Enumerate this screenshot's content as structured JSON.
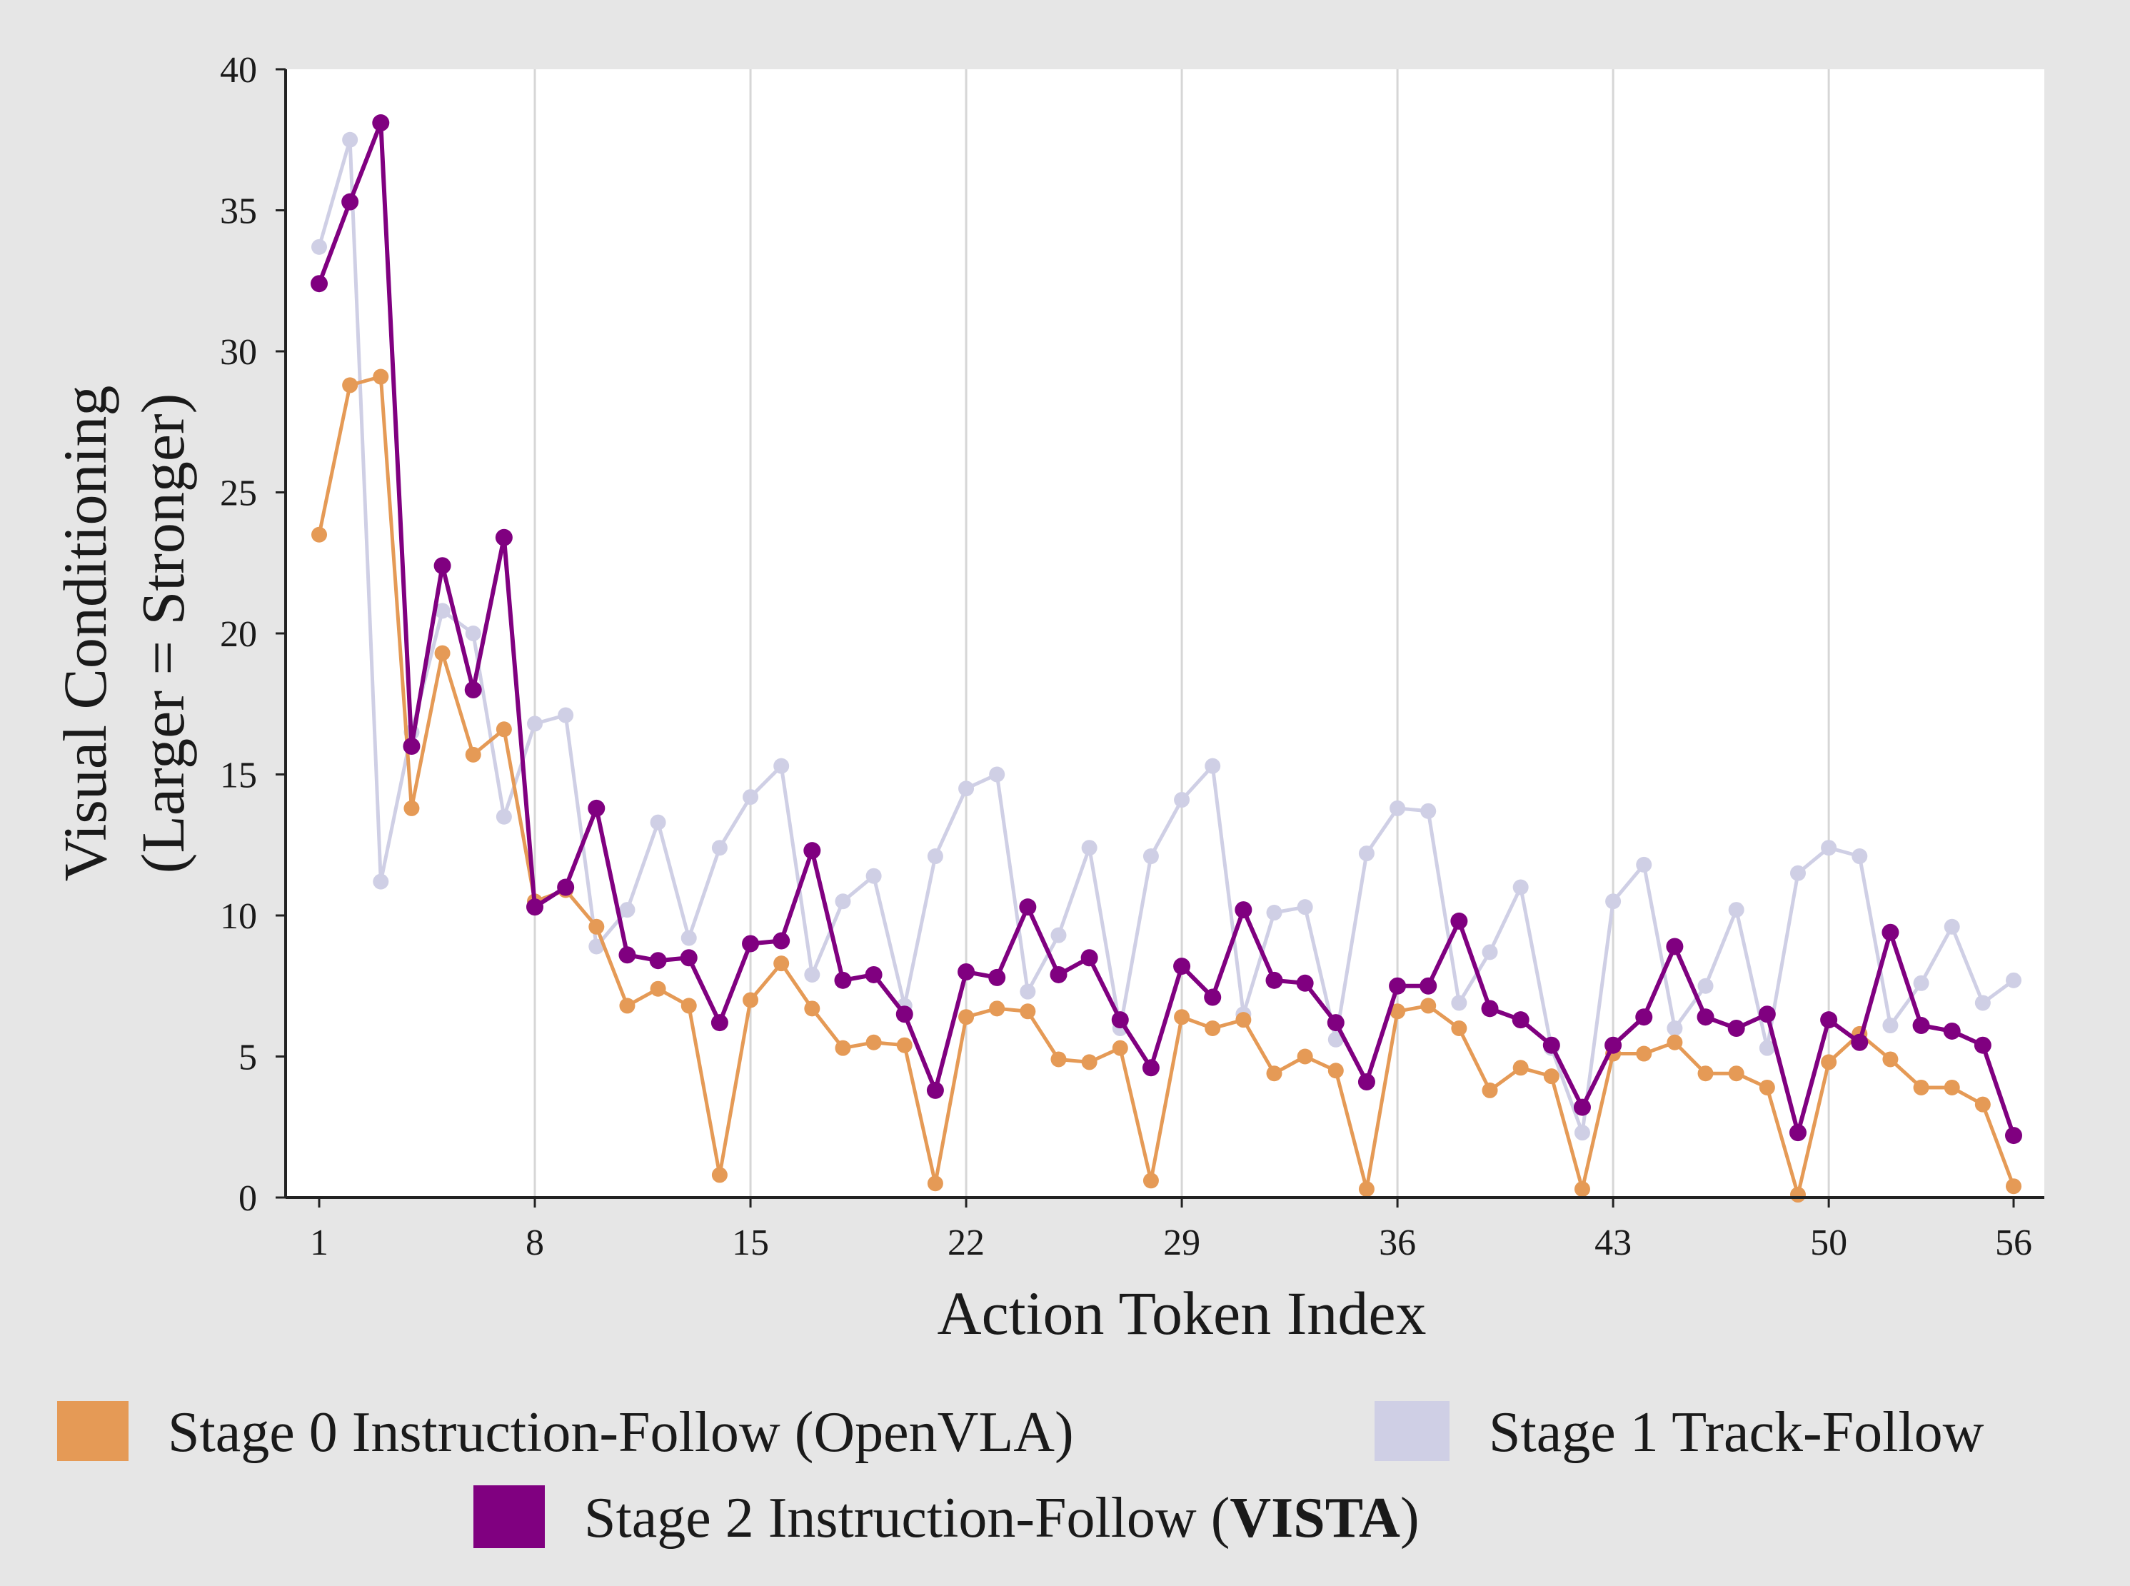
{
  "chart_data": {
    "type": "line",
    "title": "",
    "xlabel": "Action Token Index",
    "ylabel_line1": "Visual Conditioning",
    "ylabel_line2": "(Larger = Stronger)",
    "xlim": [
      1,
      56
    ],
    "ylim": [
      0,
      40
    ],
    "x_ticks": [
      "1",
      "8",
      "15",
      "22",
      "29",
      "36",
      "43",
      "50",
      "56"
    ],
    "y_ticks": [
      "0",
      "5",
      "10",
      "15",
      "20",
      "25",
      "30",
      "35",
      "40"
    ],
    "grid": "vertical",
    "legend_position": "bottom",
    "series": [
      {
        "name": "Stage 1 Track-Follow",
        "color": "#cfcfe5",
        "values": [
          33.7,
          37.5,
          11.2,
          16.5,
          20.8,
          20.0,
          13.5,
          16.8,
          17.1,
          8.9,
          10.2,
          13.3,
          9.2,
          12.4,
          14.2,
          15.3,
          7.9,
          10.5,
          11.4,
          6.8,
          12.1,
          14.5,
          15.0,
          7.3,
          9.3,
          12.4,
          6.0,
          12.1,
          14.1,
          15.3,
          6.5,
          10.1,
          10.3,
          5.6,
          12.2,
          13.8,
          13.7,
          6.9,
          8.7,
          11.0,
          5.3,
          2.3,
          10.5,
          11.8,
          6.0,
          7.5,
          10.2,
          5.3,
          11.5,
          12.4,
          12.1,
          6.1,
          7.6,
          9.6,
          6.9,
          7.7
        ]
      },
      {
        "name": "Stage 0 Instruction-Follow (OpenVLA)",
        "color": "#e59a56",
        "values": [
          23.5,
          28.8,
          29.1,
          13.8,
          19.3,
          15.7,
          16.6,
          10.5,
          10.9,
          9.6,
          6.8,
          7.4,
          6.8,
          0.8,
          7.0,
          8.3,
          6.7,
          5.3,
          5.5,
          5.4,
          0.5,
          6.4,
          6.7,
          6.6,
          4.9,
          4.8,
          5.3,
          0.6,
          6.4,
          6.0,
          6.3,
          4.4,
          5.0,
          4.5,
          0.3,
          6.6,
          6.8,
          6.0,
          3.8,
          4.6,
          4.3,
          0.3,
          5.1,
          5.1,
          5.5,
          4.4,
          4.4,
          3.9,
          0.1,
          4.8,
          5.8,
          4.9,
          3.9,
          3.9,
          3.3,
          0.4
        ]
      },
      {
        "name": "Stage 2 Instruction-Follow (VISTA)",
        "color": "#800080",
        "values": [
          32.4,
          35.3,
          38.1,
          16.0,
          22.4,
          18.0,
          23.4,
          10.3,
          11.0,
          13.8,
          8.6,
          8.4,
          8.5,
          6.2,
          9.0,
          9.1,
          12.3,
          7.7,
          7.9,
          6.5,
          3.8,
          8.0,
          7.8,
          10.3,
          7.9,
          8.5,
          6.3,
          4.6,
          8.2,
          7.1,
          10.2,
          7.7,
          7.6,
          6.2,
          4.1,
          7.5,
          7.5,
          9.8,
          6.7,
          6.3,
          5.4,
          3.2,
          5.4,
          6.4,
          8.9,
          6.4,
          6.0,
          6.5,
          2.3,
          6.3,
          5.5,
          9.4,
          6.1,
          5.9,
          5.4,
          2.2
        ]
      }
    ],
    "legend": [
      {
        "label": "Stage 0 Instruction-Follow (OpenVLA)",
        "color": "#e59a56"
      },
      {
        "label": "Stage 1 Track-Follow",
        "color": "#cfcfe5"
      },
      {
        "label_prefix": "Stage 2 Instruction-Follow (",
        "label_bold": "VISTA",
        "label_suffix": ")",
        "color": "#800080"
      }
    ]
  }
}
